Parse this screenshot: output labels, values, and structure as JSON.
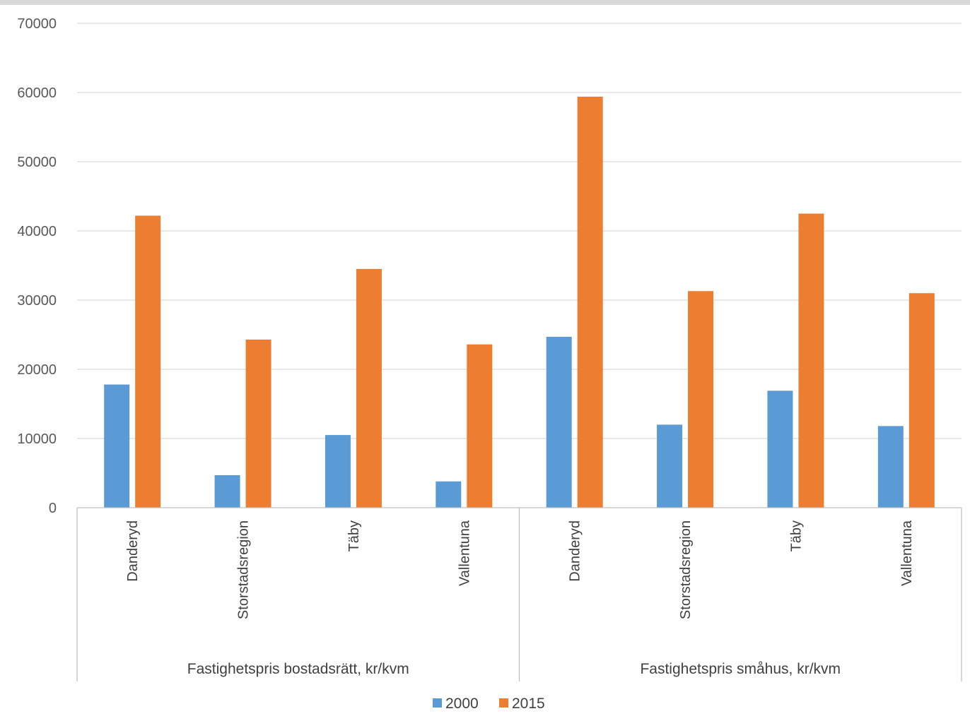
{
  "chart_data": {
    "type": "bar",
    "title": "",
    "ylim": [
      0,
      70000
    ],
    "yticks": [
      "0",
      "10000",
      "20000",
      "30000",
      "40000",
      "50000",
      "60000",
      "70000"
    ],
    "groups": [
      {
        "label": "Fastighetspris bostadsrätt, kr/kvm",
        "categories": [
          "Danderyd",
          "Storstadsregion",
          "Täby",
          "Vallentuna"
        ]
      },
      {
        "label": "Fastighetspris småhus, kr/kvm",
        "categories": [
          "Danderyd",
          "Storstadsregion",
          "Täby",
          "Vallentuna"
        ]
      }
    ],
    "series": [
      {
        "name": "2000",
        "color": "#5b9bd5",
        "values": [
          17800,
          4700,
          10500,
          3800,
          24700,
          12000,
          16900,
          11800
        ]
      },
      {
        "name": "2015",
        "color": "#ed7d31",
        "values": [
          42200,
          24300,
          34500,
          23600,
          59400,
          31300,
          42500,
          31000
        ]
      }
    ],
    "grid": true,
    "legend": "bottom"
  }
}
